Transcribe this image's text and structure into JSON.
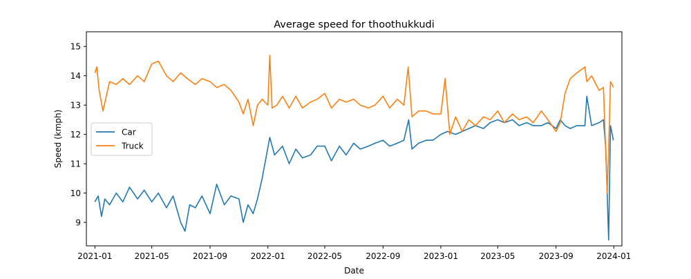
{
  "chart_data": {
    "type": "line",
    "title": "Average speed for thoothukkudi",
    "xlabel": "Date",
    "ylabel": "Speed (kmph)",
    "xlim": [
      "2020-12-14",
      "2024-01-18"
    ],
    "ylim": [
      8.2,
      15.5
    ],
    "x_ticks": [
      "2021-01",
      "2021-05",
      "2021-09",
      "2022-01",
      "2022-05",
      "2022-09",
      "2023-01",
      "2023-05",
      "2023-09",
      "2024-01"
    ],
    "y_ticks": [
      9,
      10,
      11,
      12,
      13,
      14,
      15
    ],
    "grid": false,
    "legend": {
      "position": "center-left",
      "entries": [
        "Car",
        "Truck"
      ]
    },
    "series": [
      {
        "name": "Car",
        "color": "#1f77b4",
        "x": [
          "2021-01-01",
          "2021-01-08",
          "2021-01-15",
          "2021-01-22",
          "2021-02-01",
          "2021-02-15",
          "2021-03-01",
          "2021-03-15",
          "2021-04-01",
          "2021-04-15",
          "2021-05-01",
          "2021-05-15",
          "2021-06-01",
          "2021-06-15",
          "2021-07-01",
          "2021-07-10",
          "2021-07-20",
          "2021-08-01",
          "2021-08-15",
          "2021-09-01",
          "2021-09-15",
          "2021-10-01",
          "2021-10-15",
          "2021-11-01",
          "2021-11-10",
          "2021-11-20",
          "2021-12-01",
          "2021-12-10",
          "2021-12-20",
          "2021-12-28",
          "2022-01-05",
          "2022-01-15",
          "2022-02-01",
          "2022-02-15",
          "2022-03-01",
          "2022-03-15",
          "2022-04-01",
          "2022-04-15",
          "2022-05-01",
          "2022-05-15",
          "2022-06-01",
          "2022-06-15",
          "2022-07-01",
          "2022-07-15",
          "2022-08-01",
          "2022-08-15",
          "2022-09-01",
          "2022-09-15",
          "2022-10-01",
          "2022-10-15",
          "2022-10-25",
          "2022-11-01",
          "2022-11-15",
          "2022-12-01",
          "2022-12-15",
          "2023-01-01",
          "2023-01-15",
          "2023-02-01",
          "2023-02-15",
          "2023-03-01",
          "2023-03-15",
          "2023-04-01",
          "2023-04-15",
          "2023-05-01",
          "2023-05-15",
          "2023-06-01",
          "2023-06-15",
          "2023-07-01",
          "2023-07-15",
          "2023-08-01",
          "2023-08-15",
          "2023-09-01",
          "2023-09-10",
          "2023-09-20",
          "2023-10-01",
          "2023-10-15",
          "2023-11-01",
          "2023-11-05",
          "2023-11-15",
          "2023-12-01",
          "2023-12-10",
          "2023-12-15",
          "2023-12-18",
          "2023-12-21",
          "2023-12-25",
          "2023-12-31"
        ],
        "values": [
          9.7,
          9.9,
          9.2,
          9.8,
          9.6,
          10.0,
          9.7,
          10.2,
          9.8,
          10.1,
          9.7,
          10.0,
          9.5,
          9.9,
          9.0,
          8.7,
          9.6,
          9.5,
          9.9,
          9.3,
          10.3,
          9.6,
          9.9,
          9.8,
          9.0,
          9.6,
          9.3,
          9.8,
          10.5,
          11.2,
          11.9,
          11.3,
          11.6,
          11.0,
          11.5,
          11.2,
          11.3,
          11.6,
          11.6,
          11.1,
          11.6,
          11.3,
          11.7,
          11.5,
          11.6,
          11.7,
          11.8,
          11.6,
          11.7,
          11.8,
          12.5,
          11.5,
          11.7,
          11.8,
          11.8,
          12.0,
          12.1,
          12.0,
          12.1,
          12.2,
          12.3,
          12.2,
          12.4,
          12.5,
          12.4,
          12.5,
          12.3,
          12.4,
          12.3,
          12.3,
          12.4,
          12.2,
          12.5,
          12.3,
          12.2,
          12.3,
          12.3,
          13.3,
          12.3,
          12.4,
          12.5,
          11.5,
          10.0,
          8.4,
          12.3,
          11.8
        ]
      },
      {
        "name": "Truck",
        "color": "#ff7f0e",
        "x": [
          "2021-01-01",
          "2021-01-05",
          "2021-01-10",
          "2021-01-18",
          "2021-02-01",
          "2021-02-15",
          "2021-03-01",
          "2021-03-15",
          "2021-04-01",
          "2021-04-15",
          "2021-05-01",
          "2021-05-15",
          "2021-06-01",
          "2021-06-15",
          "2021-07-01",
          "2021-07-15",
          "2021-08-01",
          "2021-08-15",
          "2021-09-01",
          "2021-09-15",
          "2021-10-01",
          "2021-10-15",
          "2021-11-01",
          "2021-11-10",
          "2021-11-20",
          "2021-12-01",
          "2021-12-10",
          "2021-12-20",
          "2022-01-01",
          "2022-01-05",
          "2022-01-10",
          "2022-01-20",
          "2022-02-01",
          "2022-02-15",
          "2022-03-01",
          "2022-03-15",
          "2022-04-01",
          "2022-04-15",
          "2022-05-01",
          "2022-05-15",
          "2022-06-01",
          "2022-06-15",
          "2022-07-01",
          "2022-07-15",
          "2022-08-01",
          "2022-08-15",
          "2022-09-01",
          "2022-09-15",
          "2022-10-01",
          "2022-10-15",
          "2022-10-24",
          "2022-11-01",
          "2022-11-15",
          "2022-12-01",
          "2022-12-15",
          "2023-01-01",
          "2023-01-10",
          "2023-01-20",
          "2023-02-01",
          "2023-02-15",
          "2023-03-01",
          "2023-03-15",
          "2023-04-01",
          "2023-04-15",
          "2023-05-01",
          "2023-05-15",
          "2023-06-01",
          "2023-06-15",
          "2023-07-01",
          "2023-07-15",
          "2023-08-01",
          "2023-08-15",
          "2023-09-01",
          "2023-09-10",
          "2023-09-20",
          "2023-10-01",
          "2023-10-15",
          "2023-11-01",
          "2023-11-05",
          "2023-11-15",
          "2023-12-01",
          "2023-12-10",
          "2023-12-18",
          "2023-12-21",
          "2023-12-25",
          "2023-12-31"
        ],
        "values": [
          14.1,
          14.3,
          13.5,
          12.8,
          13.8,
          13.7,
          13.9,
          13.7,
          14.0,
          13.8,
          14.4,
          14.5,
          14.0,
          13.8,
          14.1,
          13.9,
          13.7,
          13.9,
          13.8,
          13.6,
          13.7,
          13.5,
          13.1,
          12.7,
          13.2,
          12.3,
          13.0,
          13.2,
          13.0,
          14.7,
          12.9,
          13.0,
          13.3,
          12.9,
          13.3,
          12.9,
          13.1,
          13.2,
          13.4,
          12.9,
          13.2,
          13.1,
          13.2,
          13.0,
          12.9,
          13.0,
          13.3,
          12.9,
          13.2,
          13.0,
          14.3,
          12.6,
          12.8,
          12.8,
          12.7,
          12.7,
          13.9,
          12.0,
          12.6,
          12.1,
          12.5,
          12.3,
          12.6,
          12.5,
          12.8,
          12.4,
          12.7,
          12.5,
          12.6,
          12.4,
          12.8,
          12.5,
          12.1,
          12.4,
          13.4,
          13.9,
          14.1,
          14.3,
          13.8,
          14.0,
          13.5,
          13.6,
          10.0,
          11.5,
          13.8,
          13.6
        ]
      }
    ]
  }
}
